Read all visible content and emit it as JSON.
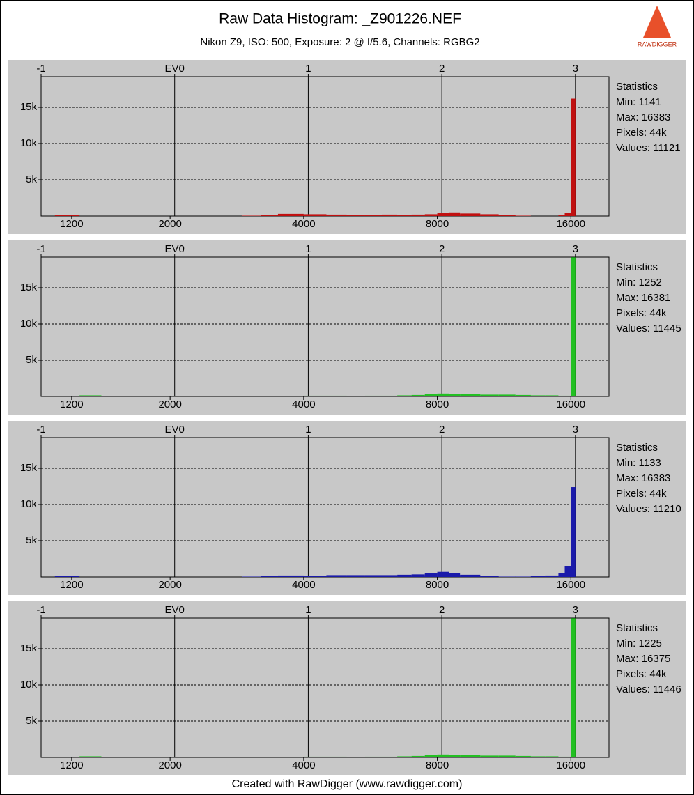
{
  "title": "Raw Data Histogram: _Z901226.NEF",
  "subtitle": "Nikon Z9, ISO: 500, Exposure: 2 @ f/5.6, Channels: RGBG2",
  "footer": "Created with RawDigger (www.rawdigger.com)",
  "logo_text": "RAWDIGGER",
  "chart_data": [
    {
      "type": "histogram",
      "color": "#c01010",
      "log_x": true,
      "grid": true,
      "bins": [
        1100,
        1250,
        1400,
        2900,
        3200,
        3500,
        4000,
        4500,
        5000,
        5500,
        6000,
        6500,
        7000,
        7500,
        8000,
        8500,
        9000,
        10000,
        11000,
        12000,
        13000,
        14000,
        15000,
        15500,
        16000,
        16384
      ],
      "counts": [
        150,
        0,
        0,
        50,
        150,
        300,
        250,
        200,
        150,
        150,
        200,
        150,
        200,
        250,
        400,
        500,
        350,
        250,
        150,
        50,
        0,
        0,
        100,
        400,
        16200
      ],
      "xlim": [
        1024,
        19500
      ],
      "ylim": [
        0,
        19230
      ],
      "xticks": [
        1200,
        2000,
        4000,
        8000,
        16000
      ],
      "xticks_top": [
        {
          "value": 1024,
          "label": "-1"
        },
        {
          "value": 2048,
          "label": "EV0"
        },
        {
          "value": 4096,
          "label": "1"
        },
        {
          "value": 8192,
          "label": "2"
        },
        {
          "value": 16384,
          "label": "3"
        }
      ],
      "yticks": [
        {
          "value": 5000,
          "label": "5k"
        },
        {
          "value": 10000,
          "label": "10k"
        },
        {
          "value": 15000,
          "label": "15k"
        }
      ],
      "stats": [
        "Statistics",
        "Min: 1141",
        "Max: 16383",
        "Pixels: 44k",
        "Values: 11121"
      ]
    },
    {
      "type": "histogram",
      "color": "#22c022",
      "log_x": true,
      "grid": true,
      "bins": [
        1100,
        1250,
        1400,
        2900,
        3200,
        3500,
        4000,
        4500,
        5000,
        5500,
        6000,
        6500,
        7000,
        7500,
        8000,
        8500,
        9000,
        10000,
        11000,
        12000,
        13000,
        14000,
        15000,
        15500,
        16000,
        16384
      ],
      "counts": [
        0,
        150,
        0,
        0,
        0,
        0,
        100,
        100,
        0,
        100,
        100,
        150,
        200,
        300,
        400,
        350,
        300,
        250,
        250,
        200,
        150,
        150,
        100,
        100,
        19200
      ],
      "xlim": [
        1024,
        19500
      ],
      "ylim": [
        0,
        19230
      ],
      "xticks": [
        1200,
        2000,
        4000,
        8000,
        16000
      ],
      "xticks_top": [
        {
          "value": 1024,
          "label": "-1"
        },
        {
          "value": 2048,
          "label": "EV0"
        },
        {
          "value": 4096,
          "label": "1"
        },
        {
          "value": 8192,
          "label": "2"
        },
        {
          "value": 16384,
          "label": "3"
        }
      ],
      "yticks": [
        {
          "value": 5000,
          "label": "5k"
        },
        {
          "value": 10000,
          "label": "10k"
        },
        {
          "value": 15000,
          "label": "15k"
        }
      ],
      "stats": [
        "Statistics",
        "Min: 1252",
        "Max: 16381",
        "Pixels: 44k",
        "Values: 11445"
      ]
    },
    {
      "type": "histogram",
      "color": "#1a1aaa",
      "log_x": true,
      "grid": true,
      "bins": [
        1100,
        1250,
        1400,
        2900,
        3200,
        3500,
        4000,
        4500,
        5000,
        5500,
        6000,
        6500,
        7000,
        7500,
        8000,
        8500,
        9000,
        10000,
        11000,
        12000,
        13000,
        14000,
        15000,
        15500,
        16000,
        16384
      ],
      "counts": [
        100,
        0,
        0,
        50,
        100,
        200,
        150,
        250,
        250,
        250,
        250,
        300,
        350,
        500,
        700,
        500,
        300,
        100,
        50,
        50,
        100,
        200,
        500,
        1500,
        12400
      ],
      "xlim": [
        1024,
        19500
      ],
      "ylim": [
        0,
        19230
      ],
      "xticks": [
        1200,
        2000,
        4000,
        8000,
        16000
      ],
      "xticks_top": [
        {
          "value": 1024,
          "label": "-1"
        },
        {
          "value": 2048,
          "label": "EV0"
        },
        {
          "value": 4096,
          "label": "1"
        },
        {
          "value": 8192,
          "label": "2"
        },
        {
          "value": 16384,
          "label": "3"
        }
      ],
      "yticks": [
        {
          "value": 5000,
          "label": "5k"
        },
        {
          "value": 10000,
          "label": "10k"
        },
        {
          "value": 15000,
          "label": "15k"
        }
      ],
      "stats": [
        "Statistics",
        "Min: 1133",
        "Max: 16383",
        "Pixels: 44k",
        "Values: 11210"
      ]
    },
    {
      "type": "histogram",
      "color": "#22c022",
      "log_x": true,
      "grid": true,
      "bins": [
        1100,
        1250,
        1400,
        2900,
        3200,
        3500,
        4000,
        4500,
        5000,
        5500,
        6000,
        6500,
        7000,
        7500,
        8000,
        8500,
        9000,
        10000,
        11000,
        12000,
        13000,
        14000,
        15000,
        15500,
        16000,
        16384
      ],
      "counts": [
        0,
        150,
        0,
        0,
        0,
        0,
        100,
        100,
        0,
        100,
        100,
        150,
        200,
        300,
        400,
        350,
        300,
        250,
        250,
        200,
        150,
        150,
        100,
        100,
        19200
      ],
      "xlim": [
        1024,
        19500
      ],
      "ylim": [
        0,
        19230
      ],
      "xticks": [
        1200,
        2000,
        4000,
        8000,
        16000
      ],
      "xticks_top": [
        {
          "value": 1024,
          "label": "-1"
        },
        {
          "value": 2048,
          "label": "EV0"
        },
        {
          "value": 4096,
          "label": "1"
        },
        {
          "value": 8192,
          "label": "2"
        },
        {
          "value": 16384,
          "label": "3"
        }
      ],
      "yticks": [
        {
          "value": 5000,
          "label": "5k"
        },
        {
          "value": 10000,
          "label": "10k"
        },
        {
          "value": 15000,
          "label": "15k"
        }
      ],
      "stats": [
        "Statistics",
        "Min: 1225",
        "Max: 16375",
        "Pixels: 44k",
        "Values: 11446"
      ]
    }
  ]
}
